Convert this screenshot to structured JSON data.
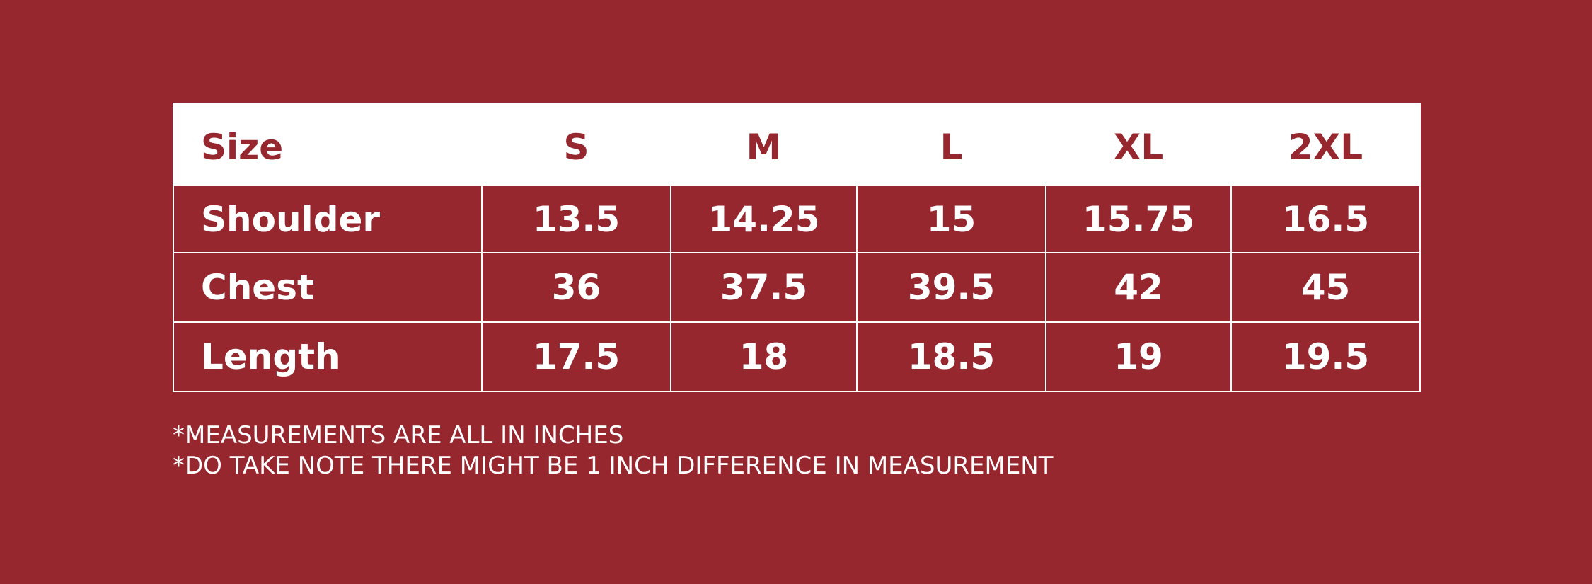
{
  "table": {
    "header": [
      "Size",
      "S",
      "M",
      "L",
      "XL",
      "2XL"
    ],
    "rows": [
      [
        "Shoulder",
        "13.5",
        "14.25",
        "15",
        "15.75",
        "16.5"
      ],
      [
        "Chest",
        "36",
        "37.5",
        "39.5",
        "42",
        "45"
      ],
      [
        "Length",
        "17.5",
        "18",
        "18.5",
        "19",
        "19.5"
      ]
    ]
  },
  "notes": [
    "*MEASUREMENTS ARE ALL IN INCHES",
    "*DO TAKE NOTE THERE MIGHT BE 1 INCH DIFFERENCE IN MEASUREMENT"
  ]
}
